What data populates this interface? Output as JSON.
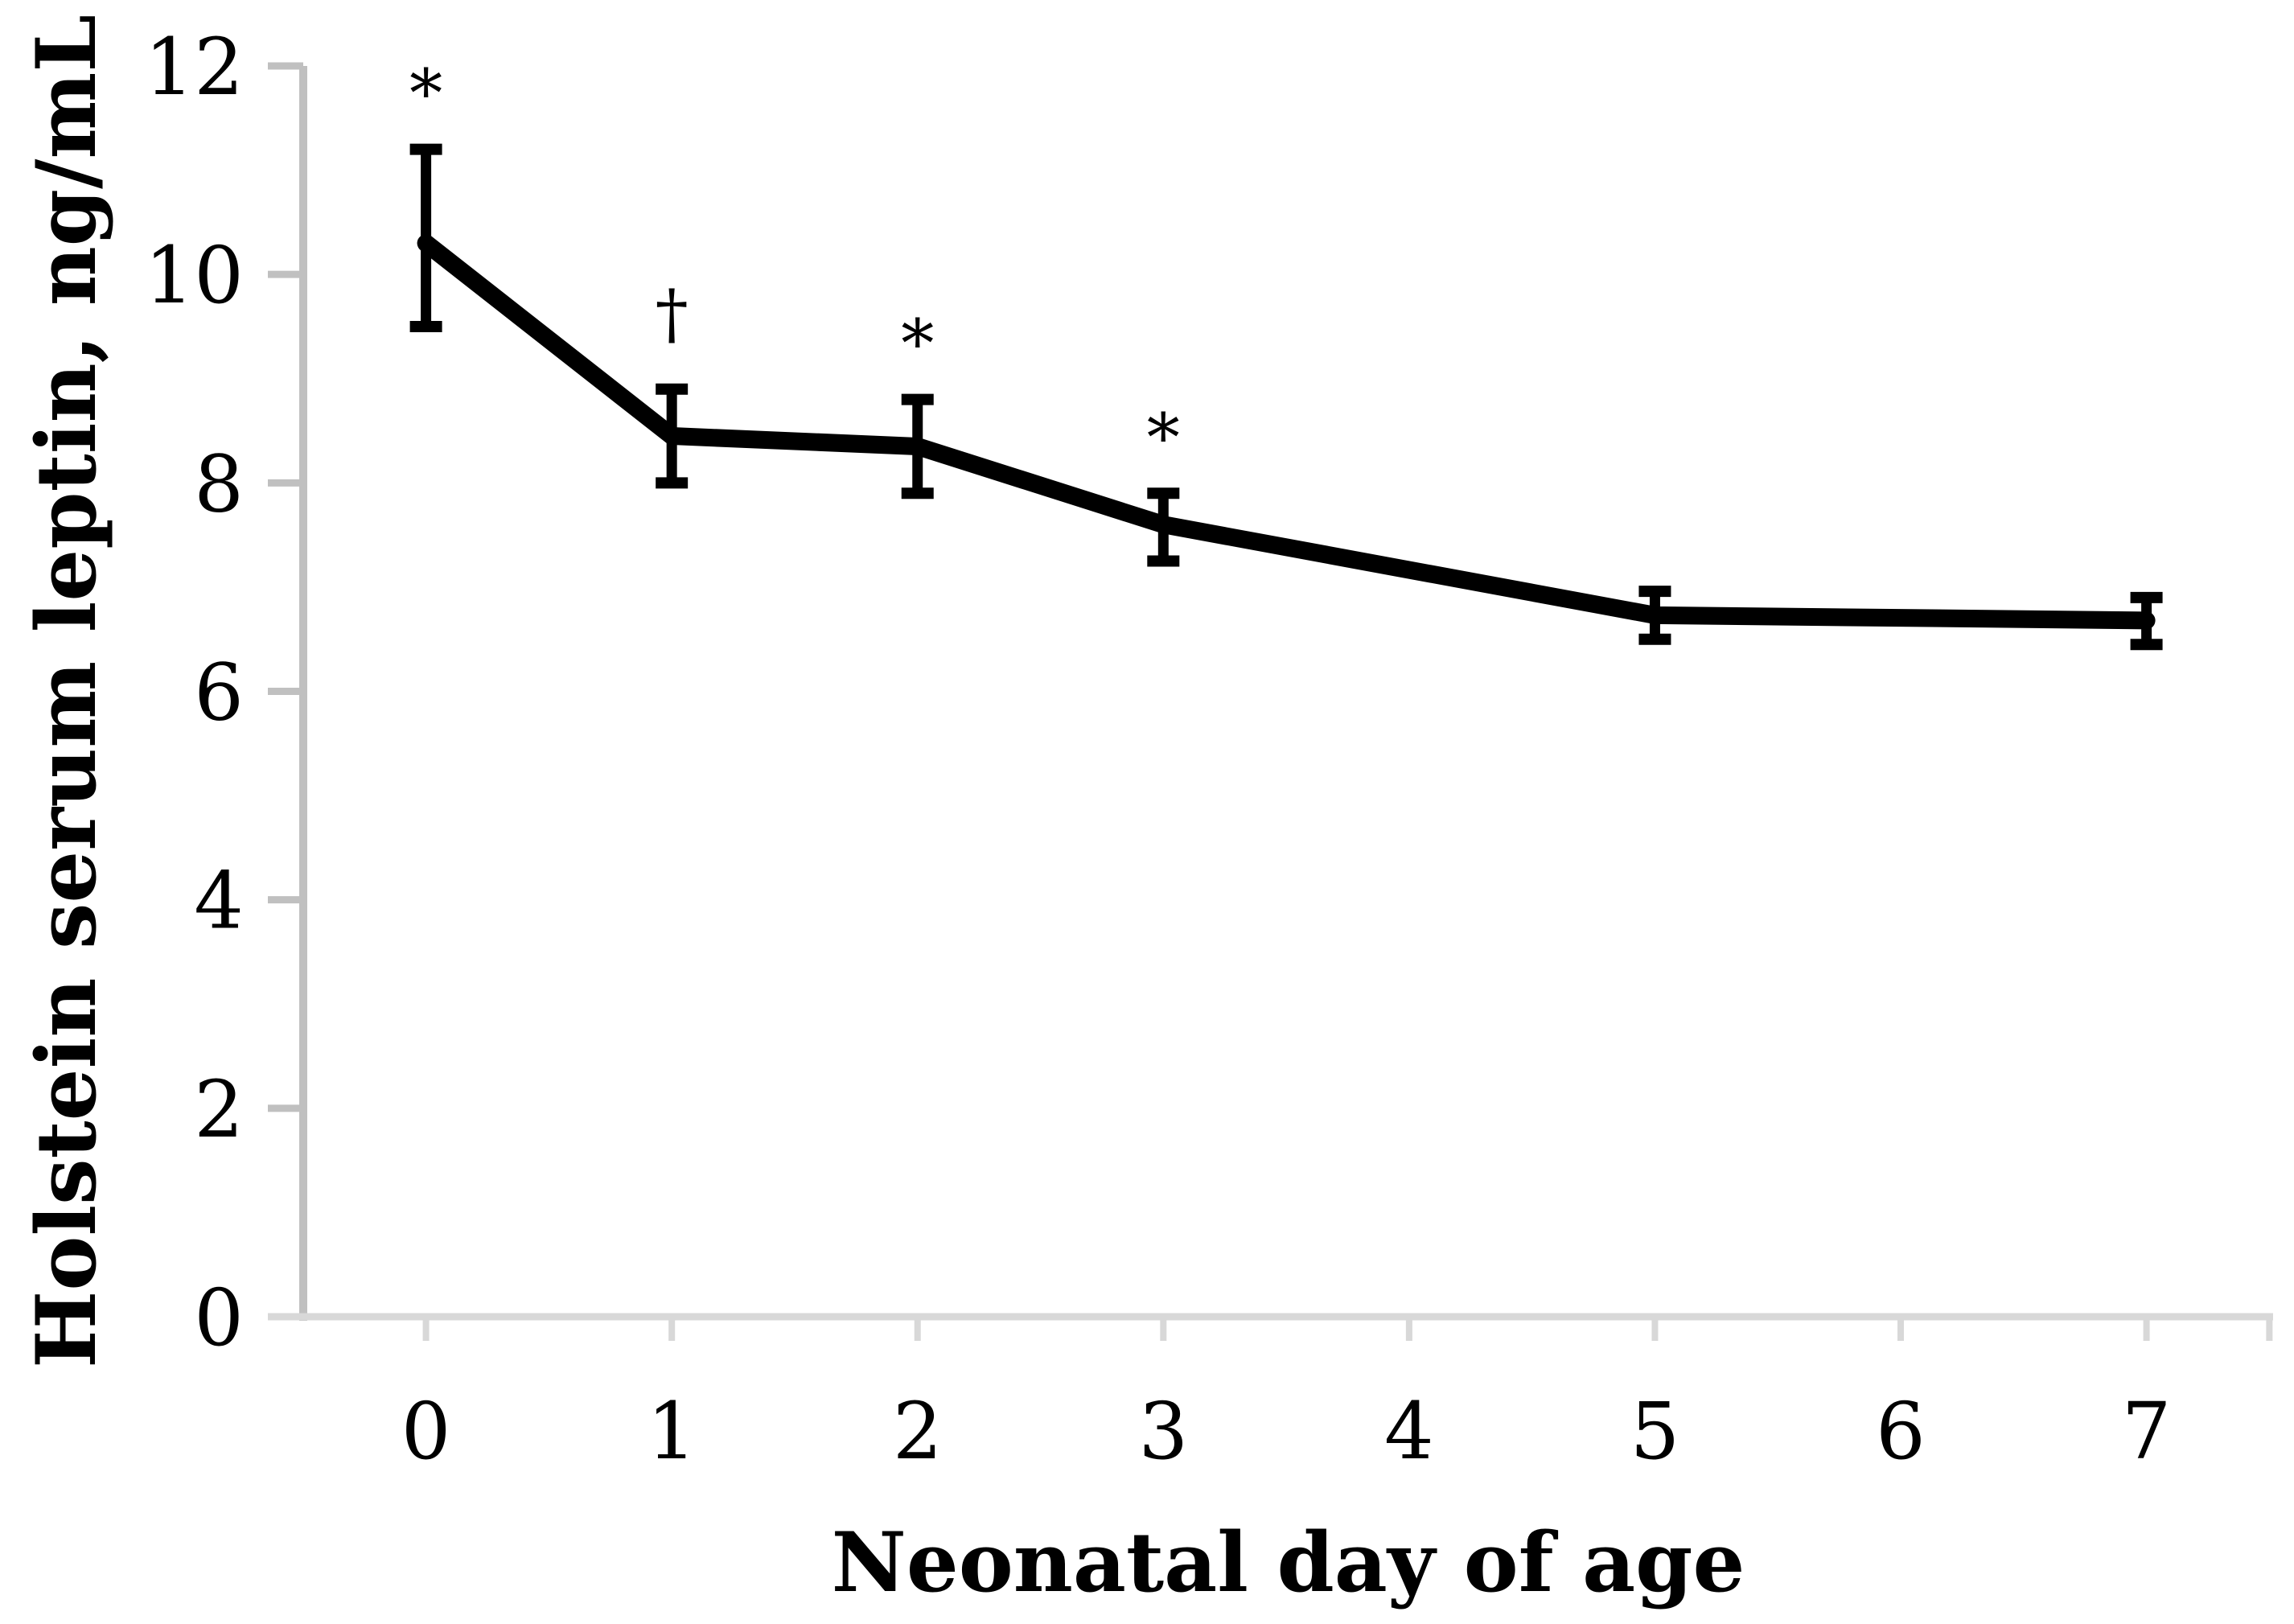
{
  "figure": {
    "background": "#ffffff"
  },
  "chart_data": {
    "type": "line",
    "title": "",
    "xlabel": "Neonatal day of age",
    "ylabel": "Holstein serum leptin, ng/mL",
    "x": [
      0,
      1,
      2,
      3,
      5,
      7
    ],
    "values": [
      10.3,
      8.45,
      8.35,
      7.6,
      6.73,
      6.68
    ],
    "error_upper": [
      11.2,
      8.9,
      8.8,
      7.9,
      6.96,
      6.9
    ],
    "error_lower": [
      9.5,
      8.0,
      7.9,
      7.25,
      6.5,
      6.45
    ],
    "point_annotations": [
      "*",
      "†",
      "*",
      "*",
      "",
      ""
    ],
    "x_tick_labels": [
      "0",
      "1",
      "2",
      "3",
      "4",
      "5",
      "6",
      "7"
    ],
    "y_tick_labels": [
      "0",
      "2",
      "4",
      "6",
      "8",
      "10",
      "12"
    ],
    "y_ticks": [
      0,
      2,
      4,
      6,
      8,
      10,
      12
    ],
    "ylim": [
      0,
      12
    ],
    "grid": false,
    "legend": false,
    "series_color": "#000000",
    "error_bar_color": "#000000",
    "y_axis_color": "#c0c0c0",
    "x_axis_color": "#d8d8d8",
    "annotation_color": "#000000"
  }
}
